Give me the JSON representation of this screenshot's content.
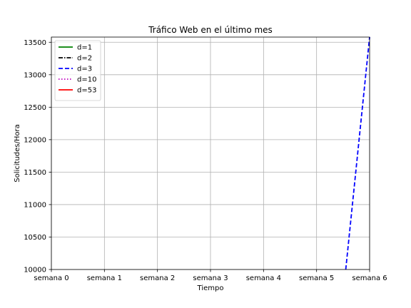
{
  "chart_data": {
    "type": "line",
    "title": "Tráfico Web en el último mes",
    "xlabel": "Tiempo",
    "ylabel": "Solicitudes/Hora",
    "xlim": [
      0,
      6
    ],
    "ylim": [
      10000,
      13580
    ],
    "x_ticks": [
      0,
      1,
      2,
      3,
      4,
      5,
      6
    ],
    "x_tick_labels": [
      "semana 0",
      "semana 1",
      "semana 2",
      "semana 3",
      "semana 4",
      "semana 5",
      "semana 6"
    ],
    "y_ticks": [
      10000,
      10500,
      11000,
      11500,
      12000,
      12500,
      13000,
      13500
    ],
    "y_tick_labels": [
      "10000",
      "10500",
      "11000",
      "11500",
      "12000",
      "12500",
      "13000",
      "13500"
    ],
    "grid": true,
    "legend_position": "top-left",
    "series": [
      {
        "name": "d=1",
        "color": "#008000",
        "dash": "solid",
        "x": [],
        "y": []
      },
      {
        "name": "d=2",
        "color": "#000000",
        "dash": "dashdot",
        "x": [],
        "y": []
      },
      {
        "name": "d=3",
        "color": "#0000ff",
        "dash": "dashed",
        "x": [
          5.55,
          6.0
        ],
        "y": [
          10000,
          13580
        ]
      },
      {
        "name": "d=10",
        "color": "#bf00bf",
        "dash": "dotted",
        "x": [],
        "y": []
      },
      {
        "name": "d=53",
        "color": "#ff0000",
        "dash": "solid",
        "x": [],
        "y": []
      }
    ]
  }
}
